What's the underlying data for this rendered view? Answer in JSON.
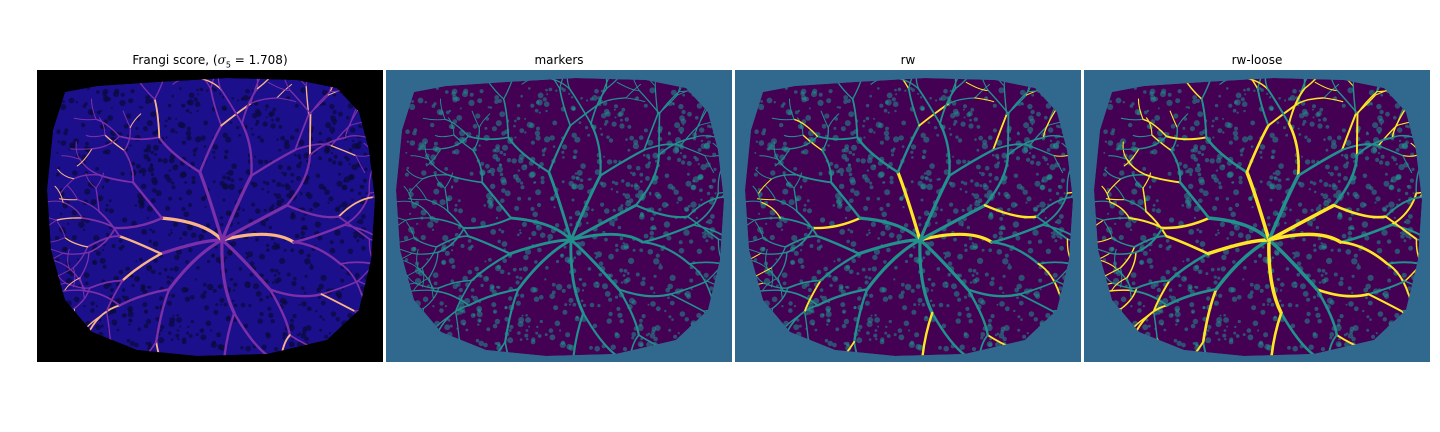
{
  "figure": {
    "panels": [
      {
        "id": "frangi",
        "title_prefix": "Frangi score, (",
        "title_math": "σ",
        "title_sub": "5",
        "title_suffix": " = 1.708)",
        "colormap": "magma",
        "colors": {
          "background": "#000000",
          "tissue": "#1b0f8c",
          "vessel": "#7b2fa8",
          "highlight": "#fcb486"
        }
      },
      {
        "id": "markers",
        "title": "markers",
        "colormap": "viridis",
        "colors": {
          "background": "#31688e",
          "tissue": "#440154",
          "vessel": "#21918c",
          "highlight": "#35b779"
        }
      },
      {
        "id": "rw",
        "title": "rw",
        "colormap": "viridis",
        "colors": {
          "background": "#31688e",
          "tissue": "#440154",
          "vessel": "#21918c",
          "highlight": "#fde725"
        }
      },
      {
        "id": "rw-loose",
        "title": "rw-loose",
        "colormap": "viridis",
        "colors": {
          "background": "#31688e",
          "tissue": "#440154",
          "vessel": "#21918c",
          "highlight": "#fde725"
        }
      }
    ]
  }
}
